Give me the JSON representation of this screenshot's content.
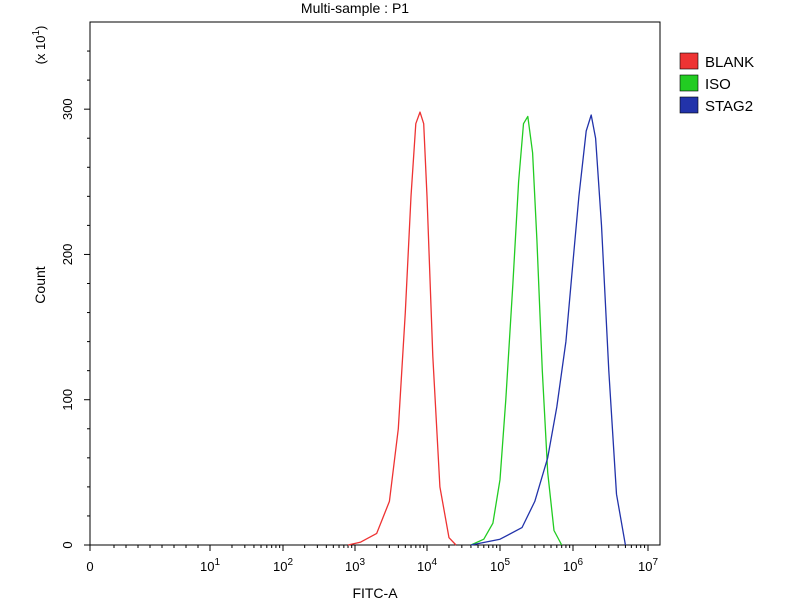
{
  "chart_data": {
    "type": "line",
    "title": "Multi-sample : P1",
    "xlabel": "FITC-A",
    "ylabel": "Count",
    "y_multiplier_label": "(x 10",
    "y_multiplier_exp": "1",
    "x_scale": "log",
    "xlim": [
      0,
      10000000
    ],
    "ylim": [
      0,
      360
    ],
    "x_ticks": [
      {
        "mantissa": "0",
        "exp": ""
      },
      {
        "mantissa": "10",
        "exp": "1"
      },
      {
        "mantissa": "10",
        "exp": "2"
      },
      {
        "mantissa": "10",
        "exp": "3"
      },
      {
        "mantissa": "10",
        "exp": "4"
      },
      {
        "mantissa": "10",
        "exp": "5"
      },
      {
        "mantissa": "10",
        "exp": "6"
      },
      {
        "mantissa": "10",
        "exp": "7"
      }
    ],
    "y_ticks": [
      "0",
      "100",
      "200",
      "300"
    ],
    "y_tick_values": [
      0,
      100,
      200,
      300
    ],
    "grid": false,
    "legend_position": "top-right",
    "series": [
      {
        "name": "BLANK",
        "color": "#ee3333",
        "x": [
          800,
          1200,
          2000,
          3000,
          4000,
          5000,
          6000,
          7000,
          8000,
          9000,
          10000,
          12000,
          15000,
          20000,
          25000
        ],
        "y": [
          0,
          2,
          8,
          30,
          80,
          160,
          240,
          290,
          298,
          290,
          240,
          130,
          40,
          5,
          0
        ]
      },
      {
        "name": "ISO",
        "color": "#22cc22",
        "x": [
          40000,
          60000,
          80000,
          100000,
          120000,
          150000,
          180000,
          210000,
          240000,
          280000,
          320000,
          380000,
          450000,
          550000,
          700000
        ],
        "y": [
          0,
          4,
          15,
          45,
          100,
          180,
          250,
          290,
          295,
          270,
          210,
          120,
          50,
          10,
          0
        ]
      },
      {
        "name": "STAG2",
        "color": "#2233aa",
        "x": [
          40000,
          100000,
          200000,
          300000,
          450000,
          600000,
          800000,
          1000000,
          1200000,
          1500000,
          1750000,
          2000000,
          2400000,
          3000000,
          3800000,
          5000000
        ],
        "y": [
          0,
          4,
          12,
          30,
          60,
          95,
          140,
          195,
          240,
          285,
          296,
          280,
          220,
          120,
          35,
          0
        ]
      }
    ]
  }
}
